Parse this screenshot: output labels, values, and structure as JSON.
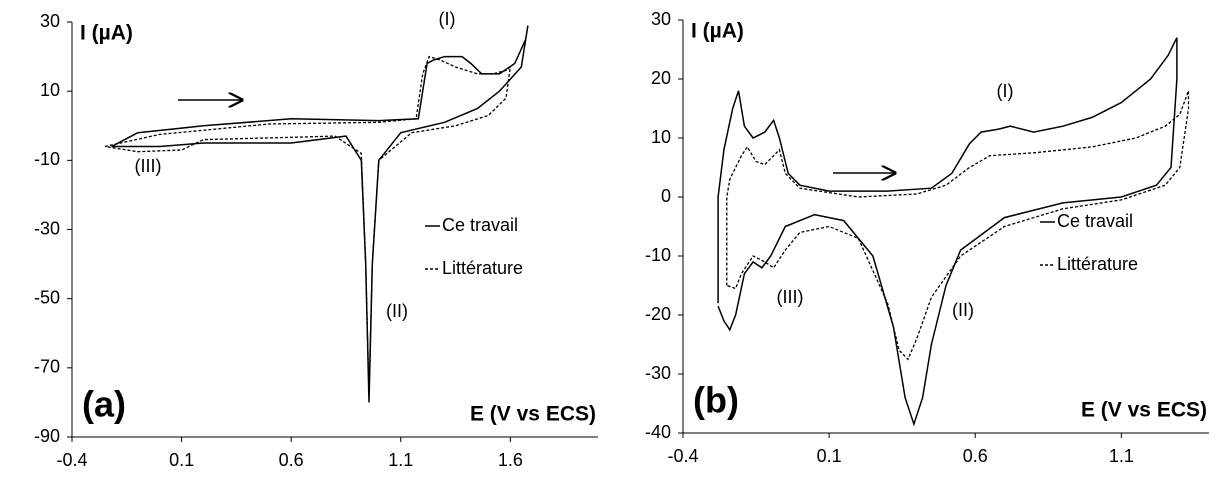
{
  "chart_data": [
    {
      "type": "line",
      "panel_label": "(a)",
      "ylabel": "I (µA)",
      "xlabel": "E (V vs ECS)",
      "annotations": [
        "(I)",
        "(II)",
        "(III)"
      ],
      "xlim": [
        -0.4,
        2.0
      ],
      "xticks": [
        -0.4,
        0.1,
        0.6,
        1.1,
        1.6
      ],
      "ylim": [
        -90,
        30
      ],
      "yticks": [
        30,
        10,
        -10,
        -30,
        -50,
        -70,
        -90
      ],
      "grid": false,
      "legend": "right",
      "series": [
        {
          "name": "Ce travail",
          "color": "#000000",
          "linestyle": "solid",
          "x": [
            -0.22,
            -0.1,
            0.2,
            0.6,
            1.0,
            1.18,
            1.2,
            1.22,
            1.25,
            1.3,
            1.38,
            1.42,
            1.47,
            1.55,
            1.62,
            1.67,
            1.68,
            1.65,
            1.55,
            1.45,
            1.3,
            1.1,
            1.0,
            0.97,
            0.955,
            0.94,
            0.92,
            0.85,
            0.6,
            0.45,
            0.2,
            0.0,
            -0.15,
            -0.22
          ],
          "values": [
            -6,
            -2,
            0,
            2,
            1.5,
            2,
            10,
            18,
            19,
            20,
            20,
            18,
            15,
            15,
            18,
            25,
            29,
            17,
            10,
            5,
            1,
            -2,
            -10,
            -40,
            -80,
            -40,
            -10,
            -3,
            -5,
            -5,
            -5,
            -6,
            -6,
            -6
          ]
        },
        {
          "name": "Littérature",
          "color": "#000000",
          "linestyle": "dashed",
          "x": [
            -0.25,
            0,
            0.5,
            1.0,
            1.17,
            1.2,
            1.23,
            1.28,
            1.35,
            1.45,
            1.52,
            1.58,
            1.6,
            1.58,
            1.5,
            1.35,
            1.15,
            1.0,
            0.97,
            0.955,
            0.94,
            0.92,
            0.8,
            0.5,
            0.2,
            0.1,
            -0.1,
            -0.25
          ],
          "values": [
            -6,
            -2.5,
            0.5,
            1,
            2,
            15,
            20,
            19,
            17,
            15,
            15,
            16,
            17,
            8,
            3,
            0,
            -2,
            -10,
            -40,
            -77,
            -40,
            -8,
            -3,
            -3.5,
            -4,
            -7,
            -7.5,
            -6
          ]
        }
      ]
    },
    {
      "type": "line",
      "panel_label": "(b)",
      "ylabel": "I (µA)",
      "xlabel": "E (V vs ECS)",
      "annotations": [
        "(I)",
        "(II)",
        "(III)"
      ],
      "xlim": [
        -0.4,
        1.4
      ],
      "xticks": [
        -0.4,
        0.1,
        0.6,
        1.1
      ],
      "ylim": [
        -40,
        30
      ],
      "yticks": [
        30,
        20,
        10,
        0,
        -10,
        -20,
        -30,
        -40
      ],
      "grid": false,
      "legend": "right",
      "series": [
        {
          "name": "Ce travail",
          "color": "#000000",
          "linestyle": "solid",
          "x": [
            -0.28,
            -0.28,
            -0.26,
            -0.23,
            -0.21,
            -0.19,
            -0.16,
            -0.12,
            -0.09,
            -0.07,
            -0.04,
            0.0,
            0.1,
            0.3,
            0.45,
            0.52,
            0.58,
            0.62,
            0.68,
            0.72,
            0.8,
            0.9,
            1.0,
            1.1,
            1.2,
            1.26,
            1.29,
            1.29,
            1.27,
            1.22,
            1.1,
            0.9,
            0.7,
            0.55,
            0.5,
            0.45,
            0.42,
            0.39,
            0.36,
            0.32,
            0.25,
            0.15,
            0.05,
            -0.05,
            -0.1,
            -0.13,
            -0.16,
            -0.19,
            -0.22,
            -0.24,
            -0.26,
            -0.28
          ],
          "values": [
            -18,
            0,
            8,
            15,
            18,
            12,
            10,
            11,
            13,
            10,
            4,
            2,
            1,
            1,
            1.5,
            4,
            9,
            11,
            11.5,
            12,
            11,
            12,
            13.5,
            16,
            20,
            24,
            27,
            20,
            5,
            2,
            0,
            -1,
            -3.5,
            -9,
            -15,
            -25,
            -34,
            -38.5,
            -34,
            -22,
            -10,
            -4,
            -3,
            -5,
            -10,
            -12,
            -11,
            -13,
            -20,
            -22.5,
            -21,
            -18.5
          ]
        },
        {
          "name": "Littérature",
          "color": "#000000",
          "linestyle": "dashed",
          "x": [
            -0.25,
            -0.25,
            -0.24,
            -0.2,
            -0.18,
            -0.15,
            -0.12,
            -0.09,
            -0.07,
            -0.05,
            0,
            0.2,
            0.4,
            0.5,
            0.58,
            0.65,
            0.8,
            1.0,
            1.15,
            1.25,
            1.3,
            1.33,
            1.33,
            1.3,
            1.25,
            1.1,
            0.9,
            0.7,
            0.55,
            0.45,
            0.4,
            0.37,
            0.34,
            0.3,
            0.2,
            0.1,
            0,
            -0.05,
            -0.09,
            -0.12,
            -0.16,
            -0.2,
            -0.22,
            -0.25
          ],
          "values": [
            -15,
            0,
            3,
            7,
            8.5,
            6,
            5.5,
            7,
            8,
            4,
            1.5,
            0,
            0.5,
            2,
            5,
            7,
            7.5,
            8.5,
            10,
            12,
            14,
            18,
            15,
            5,
            2,
            -0.5,
            -2,
            -5,
            -10,
            -17,
            -24,
            -27.5,
            -26,
            -18,
            -7,
            -5,
            -6,
            -9,
            -12,
            -11,
            -10,
            -13,
            -15.5,
            -15
          ]
        }
      ]
    }
  ]
}
